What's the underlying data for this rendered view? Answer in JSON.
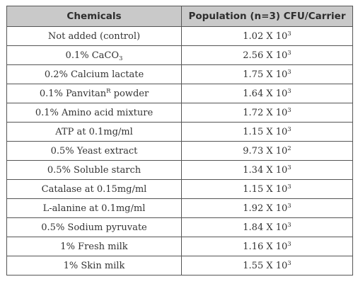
{
  "table": {
    "headers": [
      "Chemicals",
      "Population (n=3) CFU/Carrier"
    ],
    "rows": [
      {
        "chemical": {
          "text": "Not added (control)"
        },
        "population": {
          "mantissa": "1.02",
          "base": "X 10",
          "exp": "3"
        }
      },
      {
        "chemical": {
          "text": "0.1% CaCO",
          "sub": "3"
        },
        "population": {
          "mantissa": "2.56",
          "base": "X 10",
          "exp": "3"
        }
      },
      {
        "chemical": {
          "text": "0.2% Calcium lactate"
        },
        "population": {
          "mantissa": "1.75",
          "base": "X 10",
          "exp": "3"
        }
      },
      {
        "chemical": {
          "text": "0.1% Panvitan",
          "sup": "R",
          "after": " powder"
        },
        "population": {
          "mantissa": "1.64",
          "base": "X 10",
          "exp": "3"
        }
      },
      {
        "chemical": {
          "text": "0.1% Amino acid mixture"
        },
        "population": {
          "mantissa": "1.72",
          "base": "X 10",
          "exp": "3"
        }
      },
      {
        "chemical": {
          "text": "ATP at 0.1mg/ml"
        },
        "population": {
          "mantissa": "1.15",
          "base": "X 10",
          "exp": "3"
        }
      },
      {
        "chemical": {
          "text": "0.5% Yeast extract"
        },
        "population": {
          "mantissa": "9.73",
          "base": "X 10",
          "exp": "2"
        }
      },
      {
        "chemical": {
          "text": "0.5% Soluble starch"
        },
        "population": {
          "mantissa": "1.34",
          "base": "X 10",
          "exp": "3"
        }
      },
      {
        "chemical": {
          "text": "Catalase at 0.15mg/ml"
        },
        "population": {
          "mantissa": "1.15",
          "base": "X 10",
          "exp": "3"
        }
      },
      {
        "chemical": {
          "text": "L-alanine at 0.1mg/ml"
        },
        "population": {
          "mantissa": "1.92",
          "base": "X 10",
          "exp": "3"
        }
      },
      {
        "chemical": {
          "text": "0.5% Sodium pyruvate"
        },
        "population": {
          "mantissa": "1.84",
          "base": "X 10",
          "exp": "3"
        }
      },
      {
        "chemical": {
          "text": "1% Fresh milk"
        },
        "population": {
          "mantissa": "1.16",
          "base": "X 10",
          "exp": "3"
        }
      },
      {
        "chemical": {
          "text": "1% Skin milk"
        },
        "population": {
          "mantissa": "1.55",
          "base": "X 10",
          "exp": "3"
        }
      }
    ]
  }
}
